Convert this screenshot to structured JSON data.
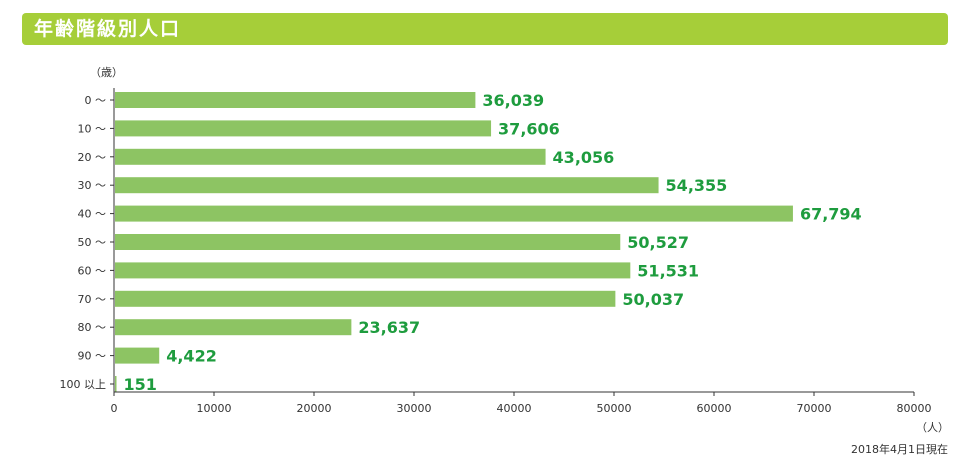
{
  "title": "年齢階級別人口",
  "footnote": "2018年4月1日現在",
  "colors": {
    "title_bar": "#a6ce39",
    "bar": "#8dc463",
    "value_label": "#1e9c3e",
    "axis": "#333333"
  },
  "chart_data": {
    "type": "bar",
    "orientation": "horizontal",
    "title": "年齢階級別人口",
    "ylabel": "（歳）",
    "xlabel": "（人）",
    "categories": [
      "0 〜",
      "10 〜",
      "20 〜",
      "30 〜",
      "40 〜",
      "50 〜",
      "60 〜",
      "70 〜",
      "80 〜",
      "90 〜",
      "100 以上"
    ],
    "values": [
      36039,
      37606,
      43056,
      54355,
      67794,
      50527,
      51531,
      50037,
      23637,
      4422,
      151
    ],
    "value_labels": [
      "36,039",
      "37,606",
      "43,056",
      "54,355",
      "67,794",
      "50,527",
      "51,531",
      "50,037",
      "23,637",
      "4,422",
      "151"
    ],
    "xlim": [
      0,
      80000
    ],
    "xticks": [
      0,
      10000,
      20000,
      30000,
      40000,
      50000,
      60000,
      70000,
      80000
    ],
    "xtick_labels": [
      "0",
      "10000",
      "20000",
      "30000",
      "40000",
      "50000",
      "60000",
      "70000",
      "80000"
    ],
    "grid": false,
    "legend": "none"
  }
}
